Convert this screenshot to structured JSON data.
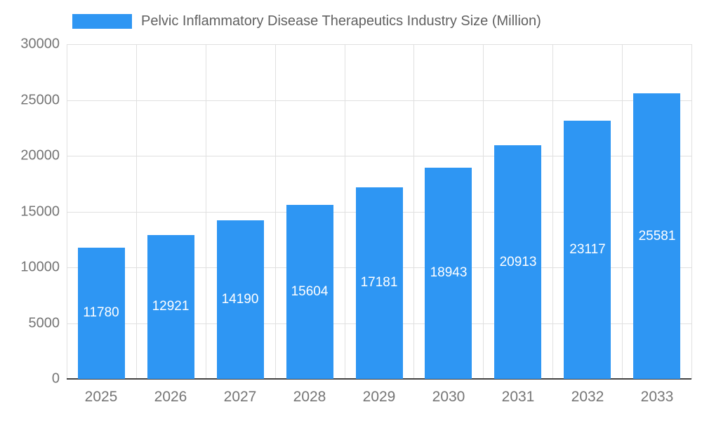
{
  "chart_data": {
    "type": "bar",
    "title": "Pelvic Inflammatory Disease Therapeutics Industry Size (Million)",
    "categories": [
      "2025",
      "2026",
      "2027",
      "2028",
      "2029",
      "2030",
      "2031",
      "2032",
      "2033"
    ],
    "values": [
      11780,
      12921,
      14190,
      15604,
      17181,
      18943,
      20913,
      23117,
      25581
    ],
    "ylim": [
      0,
      30000
    ],
    "yticks": [
      0,
      5000,
      10000,
      15000,
      20000,
      25000,
      30000
    ],
    "grid": true,
    "legend_position": "top",
    "bar_color": "#2E96F3",
    "value_label_color": "#ffffff",
    "axis_text_color": "#757575",
    "grid_color": "#e0e0e0",
    "axis_line_color": "#424242"
  }
}
